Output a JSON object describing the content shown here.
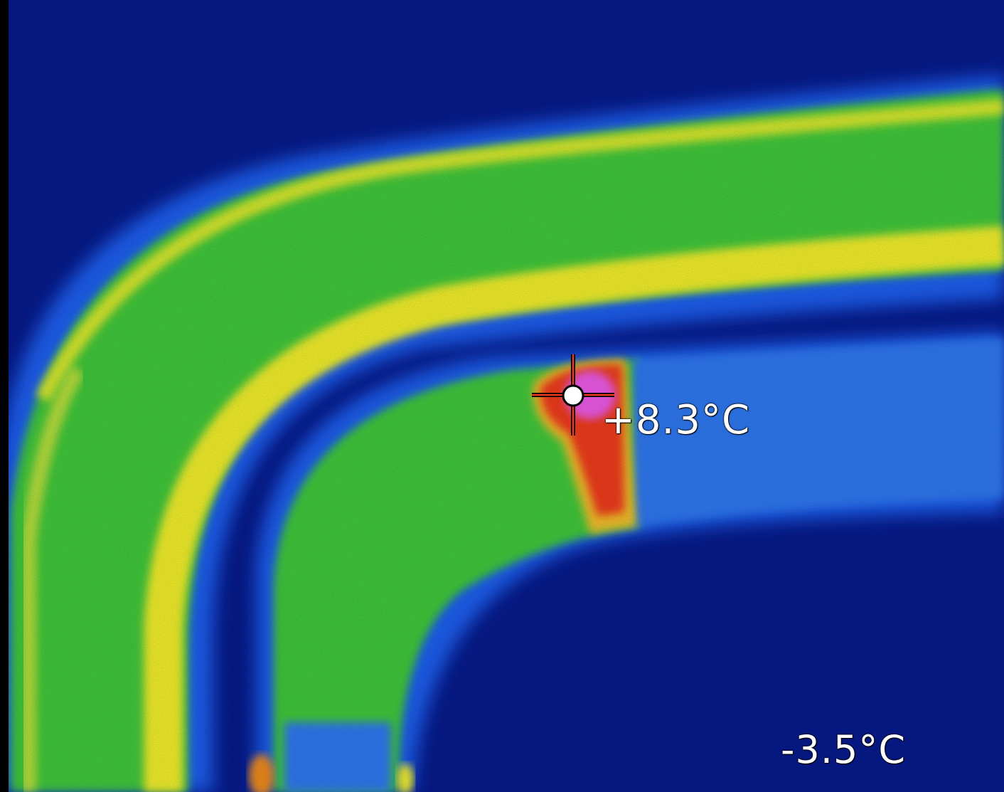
{
  "thermal": {
    "spot_temperature": "+8.3°C",
    "scale_min_temperature": "-3.5°C",
    "reticle": "crosshair-icon",
    "palette": {
      "background": "#071a8c",
      "cool": "#1e5ff0",
      "mid": "#3fc83a",
      "warm": "#f2ee2a",
      "hot": "#ef3a1e",
      "hottest": "#ec5ae8"
    }
  }
}
